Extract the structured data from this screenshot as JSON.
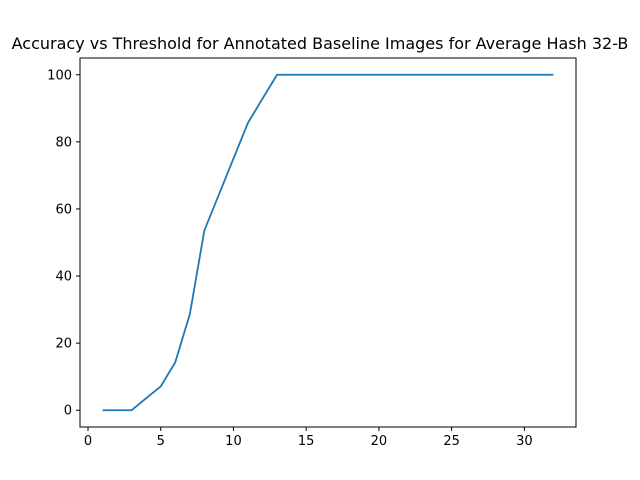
{
  "chart_data": {
    "type": "line",
    "title": "Accuracy vs Threshold for Annotated Baseline Images for Average Hash 32-B",
    "xlabel": "",
    "ylabel": "",
    "xlim": [
      -0.55,
      33.55
    ],
    "ylim": [
      -5,
      105
    ],
    "xticks": [
      0,
      5,
      10,
      15,
      20,
      25,
      30
    ],
    "yticks": [
      0,
      20,
      40,
      60,
      80,
      100
    ],
    "grid": false,
    "series": [
      {
        "color": "#1f77b4",
        "x": [
          1,
          2,
          3,
          4,
          5,
          6,
          7,
          8,
          9,
          10,
          11,
          12,
          13,
          14,
          15,
          16,
          17,
          18,
          19,
          20,
          21,
          22,
          23,
          24,
          25,
          26,
          27,
          28,
          29,
          30,
          31,
          32
        ],
        "y": [
          0,
          0,
          0,
          3.6,
          7.1,
          14.3,
          28.6,
          53.6,
          64.3,
          75,
          85.7,
          92.9,
          100,
          100,
          100,
          100,
          100,
          100,
          100,
          100,
          100,
          100,
          100,
          100,
          100,
          100,
          100,
          100,
          100,
          100,
          100,
          100
        ]
      }
    ]
  }
}
